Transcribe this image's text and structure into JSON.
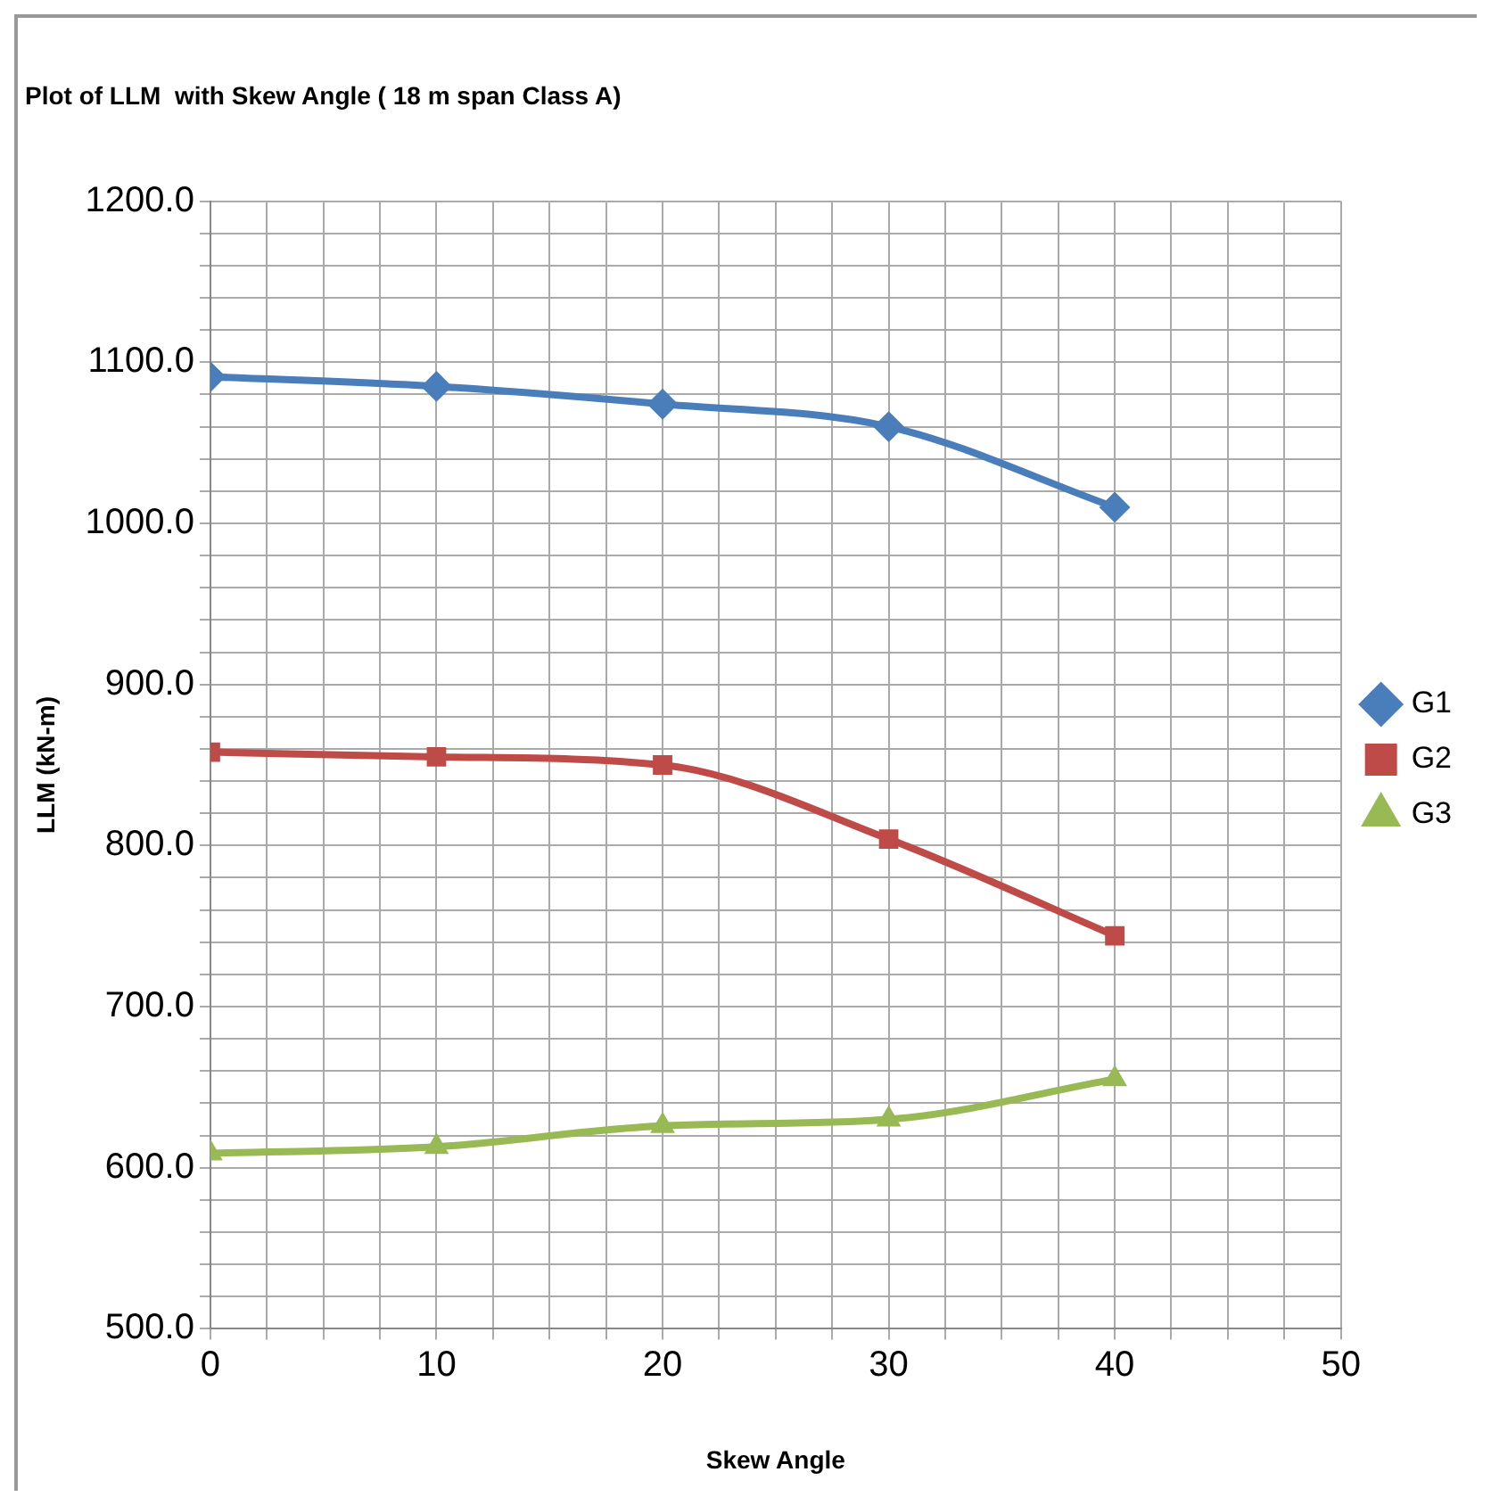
{
  "chart_data": {
    "type": "line",
    "title": "Plot of LLM  with Skew Angle ( 18 m span Class A)",
    "xlabel": "Skew Angle",
    "ylabel": "LLM (kN-m)",
    "x": [
      0,
      10,
      20,
      30,
      40
    ],
    "series": [
      {
        "name": "G1",
        "color": "#4a7ebb",
        "marker": "diamond",
        "values": [
          1091,
          1085,
          1074,
          1060,
          1010
        ]
      },
      {
        "name": "G2",
        "color": "#be4b48",
        "marker": "square",
        "values": [
          858,
          855,
          850,
          804,
          744
        ]
      },
      {
        "name": "G3",
        "color": "#98b954",
        "marker": "triangle",
        "values": [
          609,
          613,
          626,
          630,
          655
        ]
      }
    ],
    "xlim": [
      0,
      50
    ],
    "xticks": [
      0,
      {
        "value": 2.5,
        "label": null
      },
      {
        "value": 5,
        "label": null
      },
      {
        "value": 7.5,
        "label": null
      },
      10,
      {
        "value": 12.5,
        "label": null
      },
      {
        "value": 15,
        "label": null
      },
      {
        "value": 17.5,
        "label": null
      },
      20,
      {
        "value": 22.5,
        "label": null
      },
      {
        "value": 25,
        "label": null
      },
      {
        "value": 27.5,
        "label": null
      },
      30,
      {
        "value": 32.5,
        "label": null
      },
      {
        "value": 35,
        "label": null
      },
      {
        "value": 37.5,
        "label": null
      },
      40,
      {
        "value": 42.5,
        "label": null
      },
      {
        "value": 45,
        "label": null
      },
      {
        "value": 47.5,
        "label": null
      },
      50
    ],
    "ylim": [
      500,
      1200
    ],
    "yticks": [
      {
        "value": 500,
        "label": "500.0"
      },
      {
        "value": 520,
        "label": null
      },
      {
        "value": 540,
        "label": null
      },
      {
        "value": 560,
        "label": null
      },
      {
        "value": 580,
        "label": null
      },
      {
        "value": 600,
        "label": "600.0"
      },
      {
        "value": 620,
        "label": null
      },
      {
        "value": 640,
        "label": null
      },
      {
        "value": 660,
        "label": null
      },
      {
        "value": 680,
        "label": null
      },
      {
        "value": 700,
        "label": "700.0"
      },
      {
        "value": 720,
        "label": null
      },
      {
        "value": 740,
        "label": null
      },
      {
        "value": 760,
        "label": null
      },
      {
        "value": 780,
        "label": null
      },
      {
        "value": 800,
        "label": "800.0"
      },
      {
        "value": 820,
        "label": null
      },
      {
        "value": 840,
        "label": null
      },
      {
        "value": 860,
        "label": null
      },
      {
        "value": 880,
        "label": null
      },
      {
        "value": 900,
        "label": "900.0"
      },
      {
        "value": 920,
        "label": null
      },
      {
        "value": 940,
        "label": null
      },
      {
        "value": 960,
        "label": null
      },
      {
        "value": 980,
        "label": null
      },
      {
        "value": 1000,
        "label": "1000.0"
      },
      {
        "value": 1020,
        "label": null
      },
      {
        "value": 1040,
        "label": null
      },
      {
        "value": 1060,
        "label": null
      },
      {
        "value": 1080,
        "label": null
      },
      {
        "value": 1100,
        "label": "1100.0"
      },
      {
        "value": 1120,
        "label": null
      },
      {
        "value": 1140,
        "label": null
      },
      {
        "value": 1160,
        "label": null
      },
      {
        "value": 1180,
        "label": null
      },
      {
        "value": 1200,
        "label": "1200.0"
      }
    ],
    "grid": true,
    "legend": "right",
    "line_style": "solid"
  }
}
